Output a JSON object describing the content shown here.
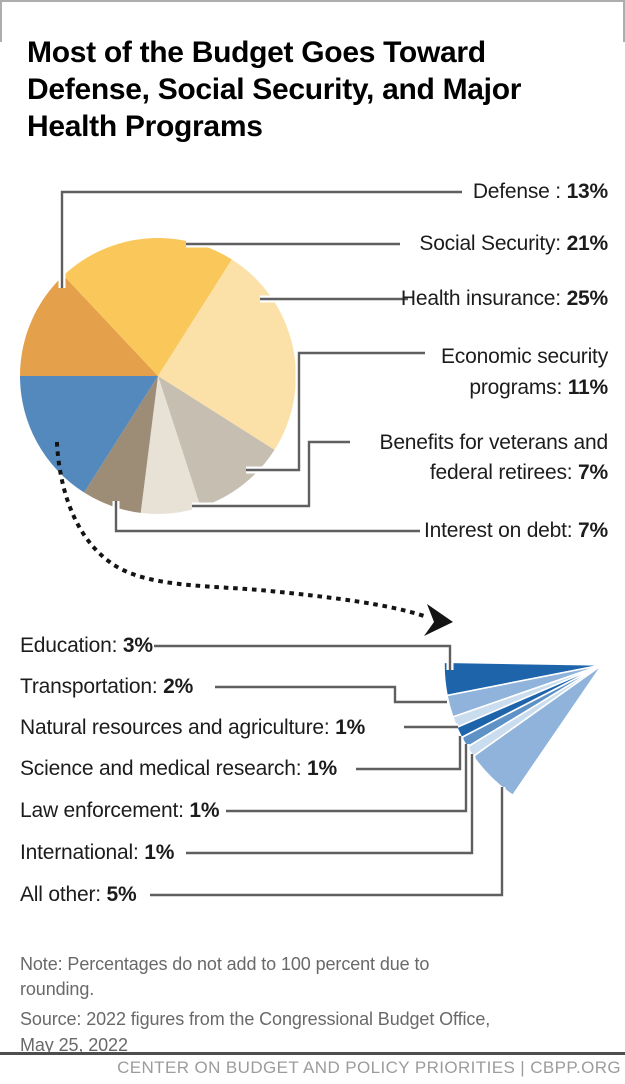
{
  "chart_data": {
    "type": "pie",
    "title": "Most of the Budget Goes Toward Defense, Social Security, and Major Health Programs",
    "unit": "%",
    "legend_position": "callout-labels",
    "main_pie": {
      "slices": [
        {
          "id": "defense",
          "prefix": "Defense : ",
          "pct": "13%",
          "value": 13,
          "color": "#E5A04B"
        },
        {
          "id": "social-security",
          "prefix": "Social Security: ",
          "pct": "21%",
          "value": 21,
          "color": "#FAC75B"
        },
        {
          "id": "health-insurance",
          "prefix": "Health insurance: ",
          "pct": "25%",
          "value": 25,
          "color": "#FBE1A8"
        },
        {
          "id": "economic-security",
          "prefix": "Economic security programs: ",
          "pct": "11%",
          "value": 11,
          "color": "#C6BEB0"
        },
        {
          "id": "veterans-federal-retirees",
          "prefix": "Benefits for veterans and federal retirees: ",
          "pct": "7%",
          "value": 7,
          "color": "#E8E2D6"
        },
        {
          "id": "interest-on-debt",
          "prefix": "Interest on debt: ",
          "pct": "7%",
          "value": 7,
          "color": "#9D8C76"
        },
        {
          "id": "smaller-categories-combined",
          "prefix": "",
          "pct": "",
          "value": 16,
          "color": "#5489BE"
        }
      ]
    },
    "breakout_fan": {
      "slices": [
        {
          "id": "education",
          "prefix": "Education: ",
          "pct": "3%",
          "value": 3,
          "color": "#1D64AB"
        },
        {
          "id": "transportation",
          "prefix": "Transportation: ",
          "pct": "2%",
          "value": 2,
          "color": "#8FB3DA"
        },
        {
          "id": "natural-resources-agriculture",
          "prefix": "Natural resources and agriculture: ",
          "pct": "1%",
          "value": 1,
          "color": "#CADDEF"
        },
        {
          "id": "science-medical-research",
          "prefix": "Science and medical research: ",
          "pct": "1%",
          "value": 1,
          "color": "#1D64AB"
        },
        {
          "id": "law-enforcement",
          "prefix": "Law enforcement: ",
          "pct": "1%",
          "value": 1,
          "color": "#5E92C7"
        },
        {
          "id": "international",
          "prefix": "International: ",
          "pct": "1%",
          "value": 1,
          "color": "#CADDEF"
        },
        {
          "id": "all-other",
          "prefix": "All other: ",
          "pct": "5%",
          "value": 5,
          "color": "#8FB3DA"
        }
      ]
    },
    "note": "Note: Percentages do not add to 100 percent due to rounding.",
    "source": "Source: 2022 figures from the Congressional Budget Office, May 25, 2022"
  },
  "footer": {
    "text": "CENTER ON BUDGET AND POLICY PRIORITIES | CBPP.ORG"
  }
}
